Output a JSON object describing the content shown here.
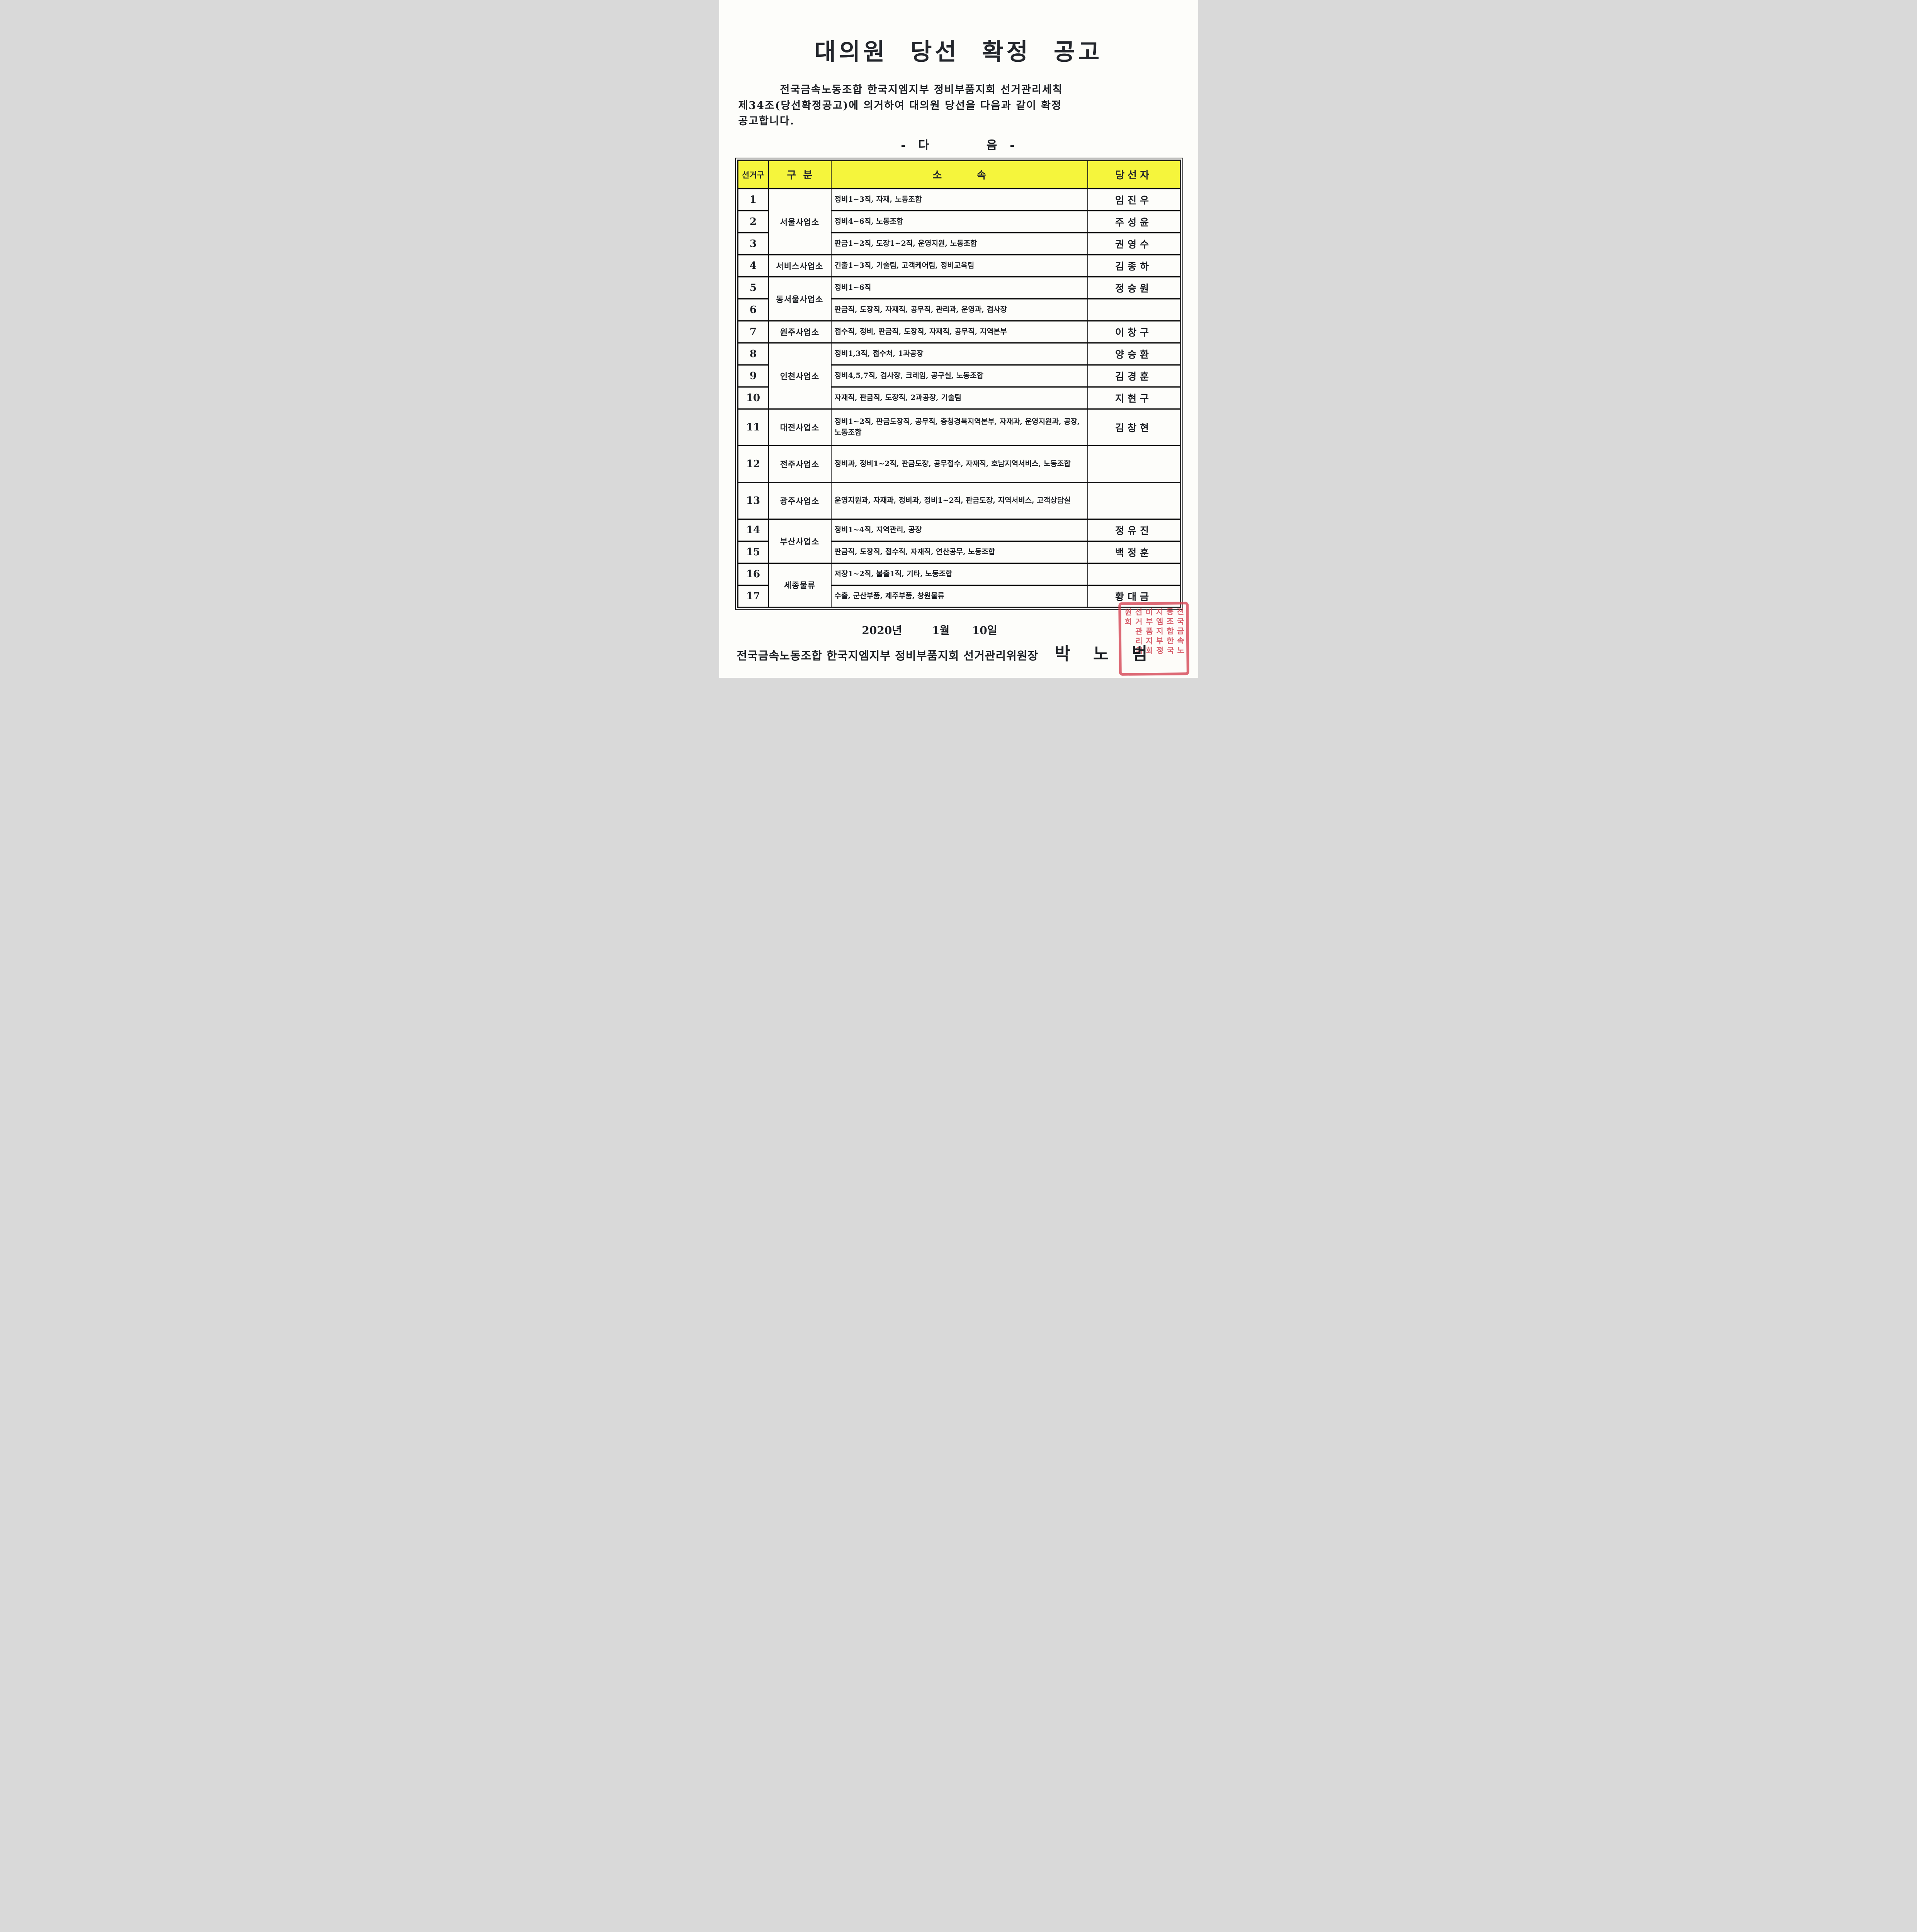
{
  "page": {
    "title": "대의원 당선 확정 공고",
    "intro_lines": [
      "전국금속노동조합 한국지엠지부 정비부품지회 선거관리세칙",
      "제34조(당선확정공고)에 의거하여 대의원 당선을 다음과 같이 확정",
      "공고합니다."
    ],
    "daum_label": "-  다          음  -",
    "date": "2020년        1월      10일",
    "footer": {
      "org_line": "전국금속노동조합 한국지엠지부 정비부품지회 선거관리위원장",
      "signer_name": "박 노 범"
    },
    "stamp": {
      "color": "#d33f4f",
      "columns": [
        "전국금속노",
        "동조합한국",
        "지엠지부정",
        "비부품지회",
        "선거관리위",
        "원회"
      ]
    }
  },
  "table": {
    "header_bg": "#f5f53c",
    "headers": [
      "선거구",
      "구  분",
      "소          속",
      "당선자"
    ],
    "rows": [
      {
        "no": "1",
        "group": "서울사업소",
        "group_span": 3,
        "affiliation": "정비1~3직, 자재, 노동조합",
        "winner": "임진우"
      },
      {
        "no": "2",
        "affiliation": "정비4~6직, 노동조합",
        "winner": "주성윤"
      },
      {
        "no": "3",
        "affiliation": "판금1~2직, 도장1~2직, 운영지원, 노동조합",
        "winner": "권영수"
      },
      {
        "no": "4",
        "group": "서비스사업소",
        "group_span": 1,
        "affiliation": "긴출1~3직, 기술팀, 고객케어팀, 정비교육팀",
        "winner": "김종하"
      },
      {
        "no": "5",
        "group": "동서울사업소",
        "group_span": 2,
        "affiliation": "정비1~6직",
        "winner": "정승원"
      },
      {
        "no": "6",
        "affiliation": "판금직, 도장직, 자재직, 공무직, 관리과, 운영과, 검사장",
        "winner": ""
      },
      {
        "no": "7",
        "group": "원주사업소",
        "group_span": 1,
        "affiliation": "접수직, 정비, 판금직, 도장직, 자재직, 공무직, 지역본부",
        "winner": "이창구"
      },
      {
        "no": "8",
        "group": "인천사업소",
        "group_span": 3,
        "affiliation": "정비1,3직, 접수처, 1과공장",
        "winner": "양승환"
      },
      {
        "no": "9",
        "affiliation": "정비4,5,7직, 검사장, 크레임, 공구실, 노동조합",
        "winner": "김경훈"
      },
      {
        "no": "10",
        "affiliation": "자재직, 판금직, 도장직, 2과공장, 기술팀",
        "winner": "지현구"
      },
      {
        "no": "11",
        "group": "대전사업소",
        "group_span": 1,
        "affiliation": "정비1~2직, 판금도장직, 공무직, 충청경북지역본부, 자재과, 운영지원과, 공장, 노동조합",
        "winner": "김창현",
        "tall": true
      },
      {
        "no": "12",
        "group": "전주사업소",
        "group_span": 1,
        "affiliation": "정비과, 정비1~2직, 판금도장, 공무접수, 자재직, 호남지역서비스, 노동조합",
        "winner": "",
        "tall": true
      },
      {
        "no": "13",
        "group": "광주사업소",
        "group_span": 1,
        "affiliation": "운영지원과, 자재과, 정비과, 정비1~2직, 판금도장, 지역서비스, 고객상담실",
        "winner": "",
        "tall": true
      },
      {
        "no": "14",
        "group": "부산사업소",
        "group_span": 2,
        "affiliation": "정비1~4직, 지역관리, 공장",
        "winner": "정유진"
      },
      {
        "no": "15",
        "affiliation": "판금직, 도장직, 접수직, 자재직, 연산공무, 노동조합",
        "winner": "백정훈"
      },
      {
        "no": "16",
        "group": "세종물류",
        "group_span": 2,
        "affiliation": "저장1~2직, 불출1직, 기타, 노동조합",
        "winner": ""
      },
      {
        "no": "17",
        "affiliation": "수출, 군산부품, 제주부품, 창원물류",
        "winner": "황대금"
      }
    ]
  }
}
